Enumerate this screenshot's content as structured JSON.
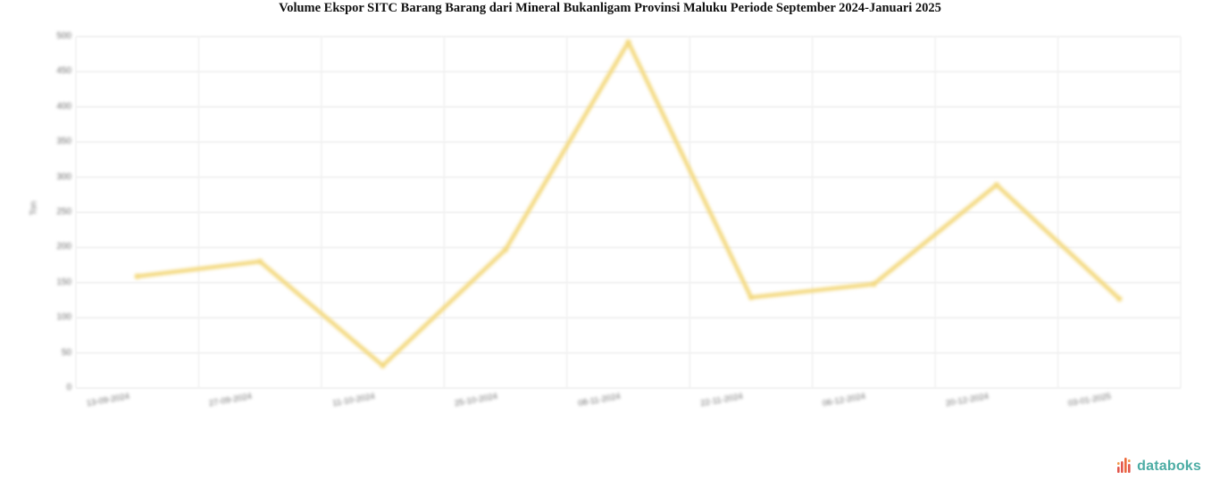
{
  "chart_data": {
    "type": "line",
    "title": "Volume Ekspor SITC Barang Barang dari Mineral Bukanligam Provinsi Maluku Periode September 2024-Januari 2025",
    "ylabel": "Ton",
    "xlabel": "",
    "categories": [
      "13-09-2024",
      "27-09-2024",
      "11-10-2024",
      "25-10-2024",
      "08-11-2024",
      "22-11-2024",
      "06-12-2024",
      "20-12-2024",
      "03-01-2025"
    ],
    "values": [
      159,
      180,
      32,
      197,
      492,
      129,
      148,
      289,
      127
    ],
    "ylim": [
      0,
      500
    ],
    "yticks": [
      0,
      50,
      100,
      150,
      200,
      250,
      300,
      350,
      400,
      450,
      500
    ],
    "grid": true,
    "legend": false
  },
  "colors": {
    "line": "#F3D87C",
    "grid_horizontal": "#f1f1f1",
    "grid_vertical": "#f4f4f4",
    "tick_text": "#6f6f6f",
    "title_text": "#111111",
    "logo_text": "#4BACA4",
    "logo_bar_dark": "#E2574C",
    "logo_bar_mid": "#ED6A3C",
    "logo_bar_light": "#F29A4A"
  },
  "logo": {
    "text": "databoks"
  }
}
